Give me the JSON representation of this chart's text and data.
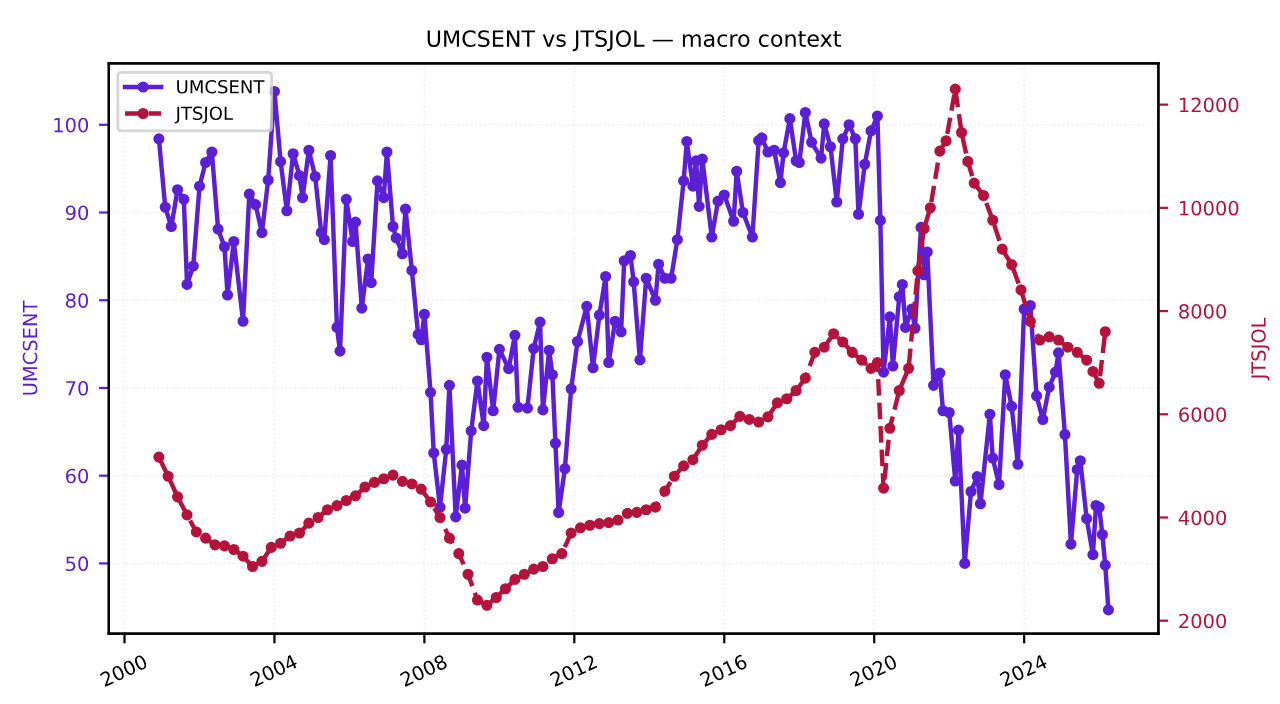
{
  "chart_data": {
    "type": "line",
    "title": "UMCSENT vs JTSJOL — macro context",
    "ylabel": "UMCSENT",
    "y2label": "JTSJOL",
    "xlim": [
      "1999-08",
      "2027-08"
    ],
    "ylim": [
      42,
      107
    ],
    "y2lim": [
      1750,
      12800
    ],
    "xticks": [
      {
        "value": "2000",
        "label": "2000"
      },
      {
        "value": "2004",
        "label": "2004"
      },
      {
        "value": "2008",
        "label": "2008"
      },
      {
        "value": "2012",
        "label": "2012"
      },
      {
        "value": "2016",
        "label": "2016"
      },
      {
        "value": "2020",
        "label": "2020"
      },
      {
        "value": "2024",
        "label": "2024"
      }
    ],
    "yticks": [
      50,
      60,
      70,
      80,
      90,
      100
    ],
    "y2ticks": [
      2000,
      4000,
      6000,
      8000,
      10000,
      12000
    ],
    "grid": true,
    "legend": "top left",
    "marker": "circle",
    "series": [
      {
        "name": "UMCSENT",
        "color": "#5b1fd6",
        "line_style": "solid",
        "x": [
          "2000-12",
          "2001-02",
          "2001-04",
          "2001-06",
          "2001-08",
          "2001-09",
          "2001-11",
          "2002-01",
          "2002-03",
          "2002-05",
          "2002-07",
          "2002-09",
          "2002-10",
          "2002-12",
          "2003-03",
          "2003-05",
          "2003-07",
          "2003-09",
          "2003-11",
          "2004-01",
          "2004-03",
          "2004-05",
          "2004-07",
          "2004-09",
          "2004-10",
          "2004-12",
          "2005-02",
          "2005-04",
          "2005-05",
          "2005-07",
          "2005-09",
          "2005-10",
          "2005-12",
          "2006-02",
          "2006-03",
          "2006-05",
          "2006-07",
          "2006-08",
          "2006-10",
          "2006-12",
          "2007-01",
          "2007-03",
          "2007-04",
          "2007-06",
          "2007-07",
          "2007-09",
          "2007-11",
          "2007-12",
          "2008-01",
          "2008-03",
          "2008-04",
          "2008-06",
          "2008-08",
          "2008-09",
          "2008-11",
          "2009-01",
          "2009-02",
          "2009-04",
          "2009-06",
          "2009-08",
          "2009-09",
          "2009-11",
          "2010-01",
          "2010-04",
          "2010-06",
          "2010-07",
          "2010-10",
          "2010-12",
          "2011-02",
          "2011-03",
          "2011-05",
          "2011-06",
          "2011-07",
          "2011-08",
          "2011-10",
          "2011-12",
          "2012-02",
          "2012-05",
          "2012-07",
          "2012-09",
          "2012-11",
          "2012-12",
          "2013-02",
          "2013-04",
          "2013-05",
          "2013-07",
          "2013-08",
          "2013-10",
          "2013-12",
          "2014-03",
          "2014-04",
          "2014-06",
          "2014-08",
          "2014-10",
          "2014-12",
          "2015-01",
          "2015-03",
          "2015-04",
          "2015-05",
          "2015-06",
          "2015-09",
          "2015-11",
          "2016-01",
          "2016-04",
          "2016-05",
          "2016-07",
          "2016-10",
          "2016-12",
          "2017-01",
          "2017-03",
          "2017-05",
          "2017-07",
          "2017-08",
          "2017-10",
          "2017-12",
          "2018-01",
          "2018-03",
          "2018-05",
          "2018-08",
          "2018-09",
          "2018-11",
          "2019-01",
          "2019-03",
          "2019-05",
          "2019-07",
          "2019-08",
          "2019-10",
          "2019-12",
          "2020-02",
          "2020-03",
          "2020-04",
          "2020-06",
          "2020-07",
          "2020-09",
          "2020-10",
          "2020-11",
          "2021-01",
          "2021-02",
          "2021-04",
          "2021-05",
          "2021-06",
          "2021-08",
          "2021-10",
          "2021-11",
          "2022-01",
          "2022-03",
          "2022-04",
          "2022-06",
          "2022-08",
          "2022-10",
          "2022-11",
          "2023-02",
          "2023-03",
          "2023-05",
          "2023-07",
          "2023-09",
          "2023-11",
          "2024-01",
          "2024-03",
          "2024-05",
          "2024-07",
          "2024-09",
          "2024-11",
          "2024-12",
          "2025-02",
          "2025-04",
          "2025-06",
          "2025-07",
          "2025-09",
          "2025-11",
          "2025-12",
          "2026-01",
          "2026-02",
          "2026-03",
          "2026-04"
        ],
        "values": [
          98.4,
          90.6,
          88.4,
          92.6,
          91.5,
          81.8,
          83.9,
          93.0,
          95.7,
          96.9,
          88.1,
          86.1,
          80.6,
          86.7,
          77.6,
          92.1,
          90.9,
          87.7,
          93.7,
          103.8,
          95.8,
          90.2,
          96.7,
          94.2,
          91.7,
          97.1,
          94.1,
          87.7,
          86.9,
          96.5,
          76.9,
          74.2,
          91.5,
          86.7,
          88.9,
          79.1,
          84.7,
          82.0,
          93.6,
          91.7,
          96.9,
          88.4,
          87.1,
          85.3,
          90.4,
          83.4,
          76.1,
          75.5,
          78.4,
          69.5,
          62.6,
          56.4,
          63.0,
          70.3,
          55.3,
          61.2,
          56.3,
          65.1,
          70.8,
          65.7,
          73.5,
          67.4,
          74.4,
          72.2,
          76.0,
          67.8,
          67.7,
          74.5,
          77.5,
          67.5,
          74.3,
          71.5,
          63.7,
          55.8,
          60.8,
          69.9,
          75.3,
          79.3,
          72.3,
          78.3,
          82.7,
          72.9,
          77.6,
          76.4,
          84.5,
          85.1,
          82.1,
          73.2,
          82.5,
          80.0,
          84.1,
          82.5,
          82.5,
          86.9,
          93.6,
          98.1,
          93.0,
          95.9,
          90.7,
          96.1,
          87.2,
          91.3,
          92.0,
          89.0,
          94.7,
          90.0,
          87.2,
          98.2,
          98.5,
          96.9,
          97.1,
          93.4,
          96.8,
          100.7,
          95.9,
          95.7,
          101.4,
          98.0,
          96.2,
          100.1,
          97.5,
          91.2,
          98.4,
          100.0,
          98.4,
          89.8,
          95.5,
          99.3,
          101.0,
          89.1,
          71.8,
          78.1,
          72.5,
          80.4,
          81.8,
          76.9,
          79.0,
          76.8,
          88.3,
          82.9,
          85.5,
          70.3,
          71.7,
          67.4,
          67.2,
          59.4,
          65.2,
          50.0,
          58.2,
          59.9,
          56.8,
          67.0,
          62.0,
          59.0,
          71.5,
          67.9,
          61.3,
          79.0,
          79.4,
          69.1,
          66.4,
          70.1,
          71.8,
          74.0,
          64.7,
          52.2,
          60.7,
          61.7,
          55.1,
          51.0,
          56.6,
          56.4,
          53.3,
          49.8,
          44.7
        ]
      },
      {
        "name": "JTSJOL",
        "color": "#b5123c",
        "line_style": "dashed",
        "axis": "y2",
        "x": [
          "2000-12",
          "2001-03",
          "2001-06",
          "2001-09",
          "2001-12",
          "2002-03",
          "2002-06",
          "2002-09",
          "2002-12",
          "2003-03",
          "2003-06",
          "2003-09",
          "2003-12",
          "2004-03",
          "2004-06",
          "2004-09",
          "2004-12",
          "2005-03",
          "2005-06",
          "2005-09",
          "2005-12",
          "2006-03",
          "2006-06",
          "2006-09",
          "2006-12",
          "2007-03",
          "2007-06",
          "2007-09",
          "2007-12",
          "2008-03",
          "2008-06",
          "2008-09",
          "2008-12",
          "2009-03",
          "2009-06",
          "2009-09",
          "2009-12",
          "2010-03",
          "2010-06",
          "2010-09",
          "2010-12",
          "2011-03",
          "2011-06",
          "2011-09",
          "2011-12",
          "2012-03",
          "2012-06",
          "2012-09",
          "2012-12",
          "2013-03",
          "2013-06",
          "2013-09",
          "2013-12",
          "2014-03",
          "2014-06",
          "2014-09",
          "2014-12",
          "2015-03",
          "2015-06",
          "2015-09",
          "2015-12",
          "2016-03",
          "2016-06",
          "2016-09",
          "2016-12",
          "2017-03",
          "2017-06",
          "2017-09",
          "2017-12",
          "2018-03",
          "2018-06",
          "2018-09",
          "2018-12",
          "2019-03",
          "2019-06",
          "2019-09",
          "2019-12",
          "2020-02",
          "2020-04",
          "2020-06",
          "2020-09",
          "2020-12",
          "2021-03",
          "2021-05",
          "2021-07",
          "2021-10",
          "2021-12",
          "2022-03",
          "2022-05",
          "2022-07",
          "2022-09",
          "2022-12",
          "2023-03",
          "2023-06",
          "2023-09",
          "2023-12",
          "2024-03",
          "2024-06",
          "2024-09",
          "2024-12",
          "2025-03",
          "2025-06",
          "2025-09",
          "2025-11",
          "2026-01",
          "2026-03"
        ],
        "values": [
          5170,
          4800,
          4400,
          4050,
          3720,
          3600,
          3470,
          3450,
          3380,
          3250,
          3050,
          3150,
          3420,
          3500,
          3640,
          3700,
          3890,
          4000,
          4150,
          4230,
          4330,
          4420,
          4590,
          4680,
          4750,
          4820,
          4700,
          4650,
          4550,
          4300,
          4000,
          3600,
          3300,
          2900,
          2400,
          2300,
          2450,
          2620,
          2800,
          2900,
          3000,
          3050,
          3200,
          3300,
          3700,
          3800,
          3850,
          3880,
          3900,
          3950,
          4080,
          4100,
          4150,
          4200,
          4510,
          4800,
          5000,
          5120,
          5400,
          5610,
          5700,
          5780,
          5960,
          5900,
          5850,
          5950,
          6220,
          6300,
          6460,
          6700,
          7200,
          7300,
          7560,
          7400,
          7200,
          7050,
          6890,
          7000,
          4570,
          5730,
          6460,
          6890,
          8780,
          9600,
          10000,
          11100,
          11300,
          12300,
          11460,
          10900,
          10480,
          10240,
          9760,
          9200,
          8900,
          8410,
          7800,
          7440,
          7500,
          7440,
          7300,
          7200,
          7050,
          6830,
          6600,
          7600
        ]
      }
    ]
  }
}
